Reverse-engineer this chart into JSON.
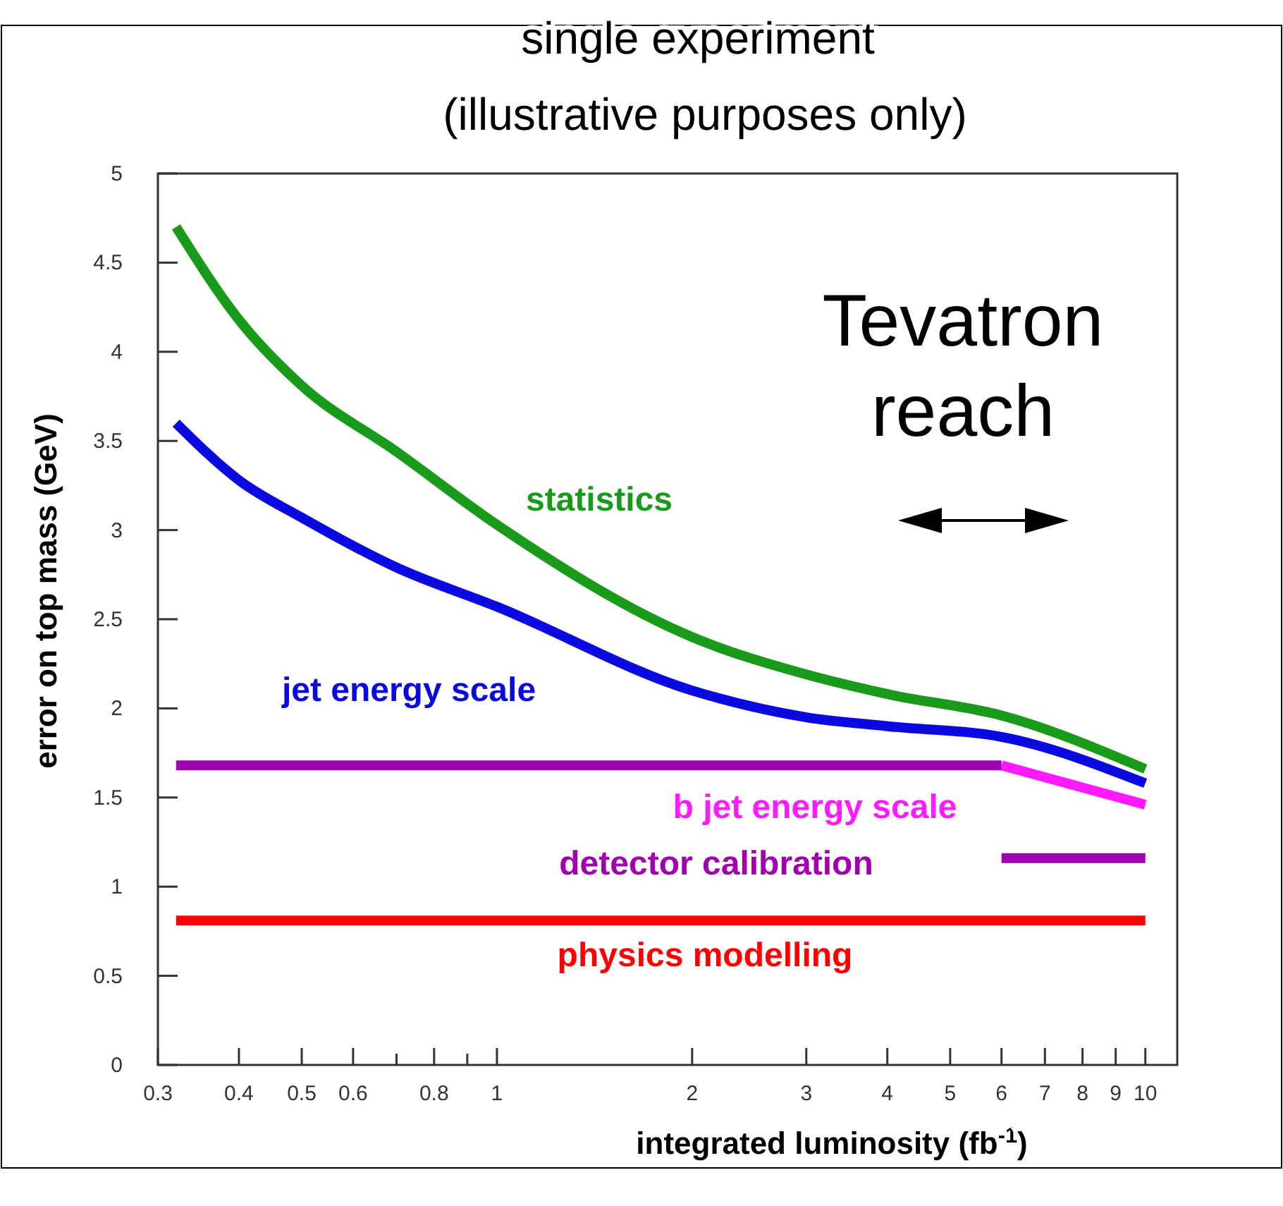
{
  "chart_data": {
    "type": "line",
    "title": "single experiment",
    "subtitle": "(illustrative purposes only)",
    "xlabel": "integrated luminosity (fb$^{-1}$)",
    "ylabel": "error on top mass (GeV)",
    "log": "x",
    "xlim": [
      0.3,
      11.2
    ],
    "ylim": [
      0,
      5
    ],
    "xticks": [
      0.3,
      0.4,
      0.5,
      0.6,
      {
        "value": 0.7,
        "label": null
      },
      0.8,
      {
        "value": 0.9,
        "label": null
      },
      1,
      2,
      3,
      4,
      5,
      6,
      7,
      8,
      9,
      10
    ],
    "yticks": [
      0,
      0.5,
      1,
      1.5,
      2,
      2.5,
      3,
      3.5,
      4,
      4.5,
      5
    ],
    "grid": false,
    "marker": "none",
    "line_style": "solid",
    "series": [
      {
        "name": "statistics",
        "color": "#1a9a1a",
        "x": [
          0.32,
          0.4,
          0.5,
          0.7,
          1,
          2,
          3,
          4,
          6,
          10
        ],
        "values": [
          4.7,
          4.18,
          3.81,
          3.44,
          3.03,
          2.4,
          2.19,
          2.08,
          1.96,
          1.66
        ]
      },
      {
        "name": "jet energy scale",
        "color": "#0a0ae0",
        "x": [
          0.32,
          0.4,
          0.5,
          0.7,
          1,
          2,
          3,
          4,
          6,
          10
        ],
        "values": [
          3.6,
          3.28,
          3.07,
          2.79,
          2.57,
          2.1,
          1.95,
          1.9,
          1.84,
          1.58
        ]
      },
      {
        "name": "b jet energy scale",
        "color": "#ff1aff",
        "x": [
          6,
          10
        ],
        "values": [
          1.68,
          1.46
        ]
      },
      {
        "name": "detector calibration",
        "color": "#a000b0",
        "x": [
          0.32,
          6,
          null,
          6,
          10
        ],
        "values": [
          1.68,
          1.68,
          null,
          1.16,
          1.16
        ]
      },
      {
        "name": "physics modelling",
        "color": "#ff0000",
        "x": [
          0.32,
          10
        ],
        "values": [
          0.81,
          0.81
        ]
      }
    ],
    "annotations": [
      "Tevatron reach"
    ]
  }
}
